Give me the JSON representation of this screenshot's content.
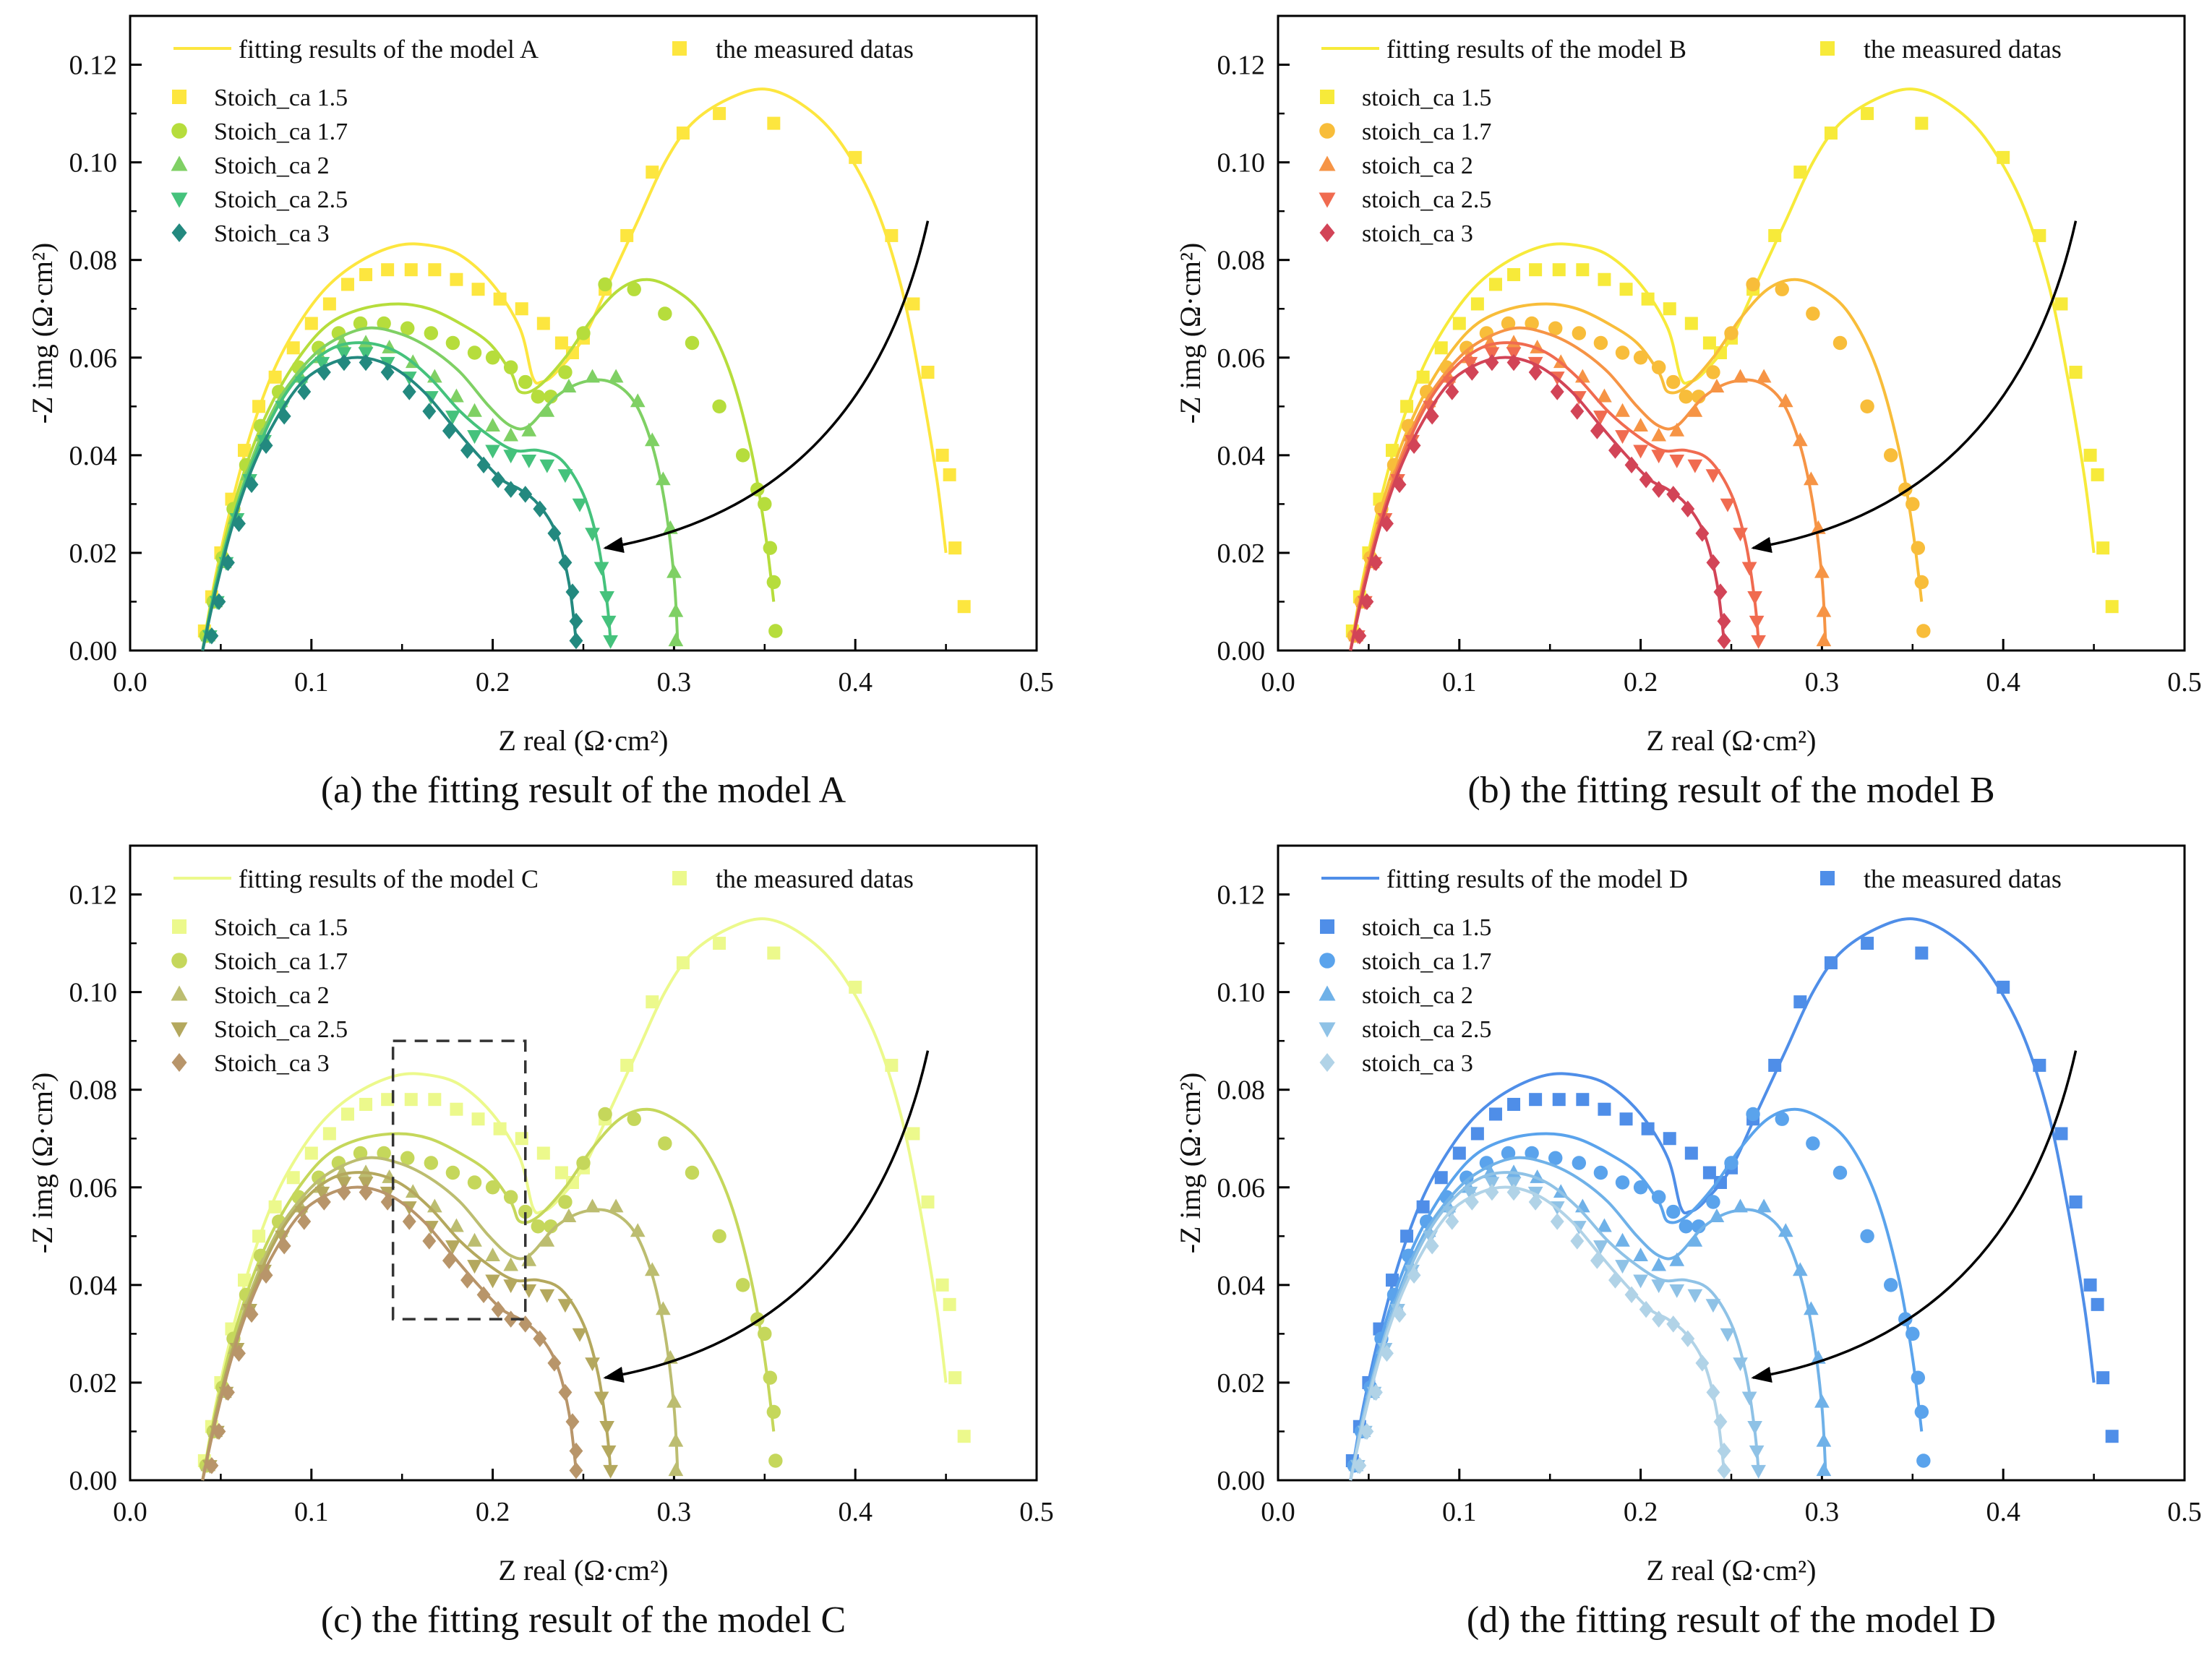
{
  "figure": {
    "panels": [
      {
        "id": "a",
        "caption": "(a) the fitting result of the model A",
        "fit_legend": "fitting results of the model A",
        "meas_legend": "the measured datas",
        "series_labels": [
          "Stoich_ca 1.5",
          "Stoich_ca 1.7",
          "Stoich_ca 2",
          "Stoich_ca 2.5",
          "Stoich_ca 3"
        ],
        "colors": [
          "#fde63f",
          "#b6dd3c",
          "#7fd064",
          "#45c27c",
          "#23897f"
        ],
        "rect": false
      },
      {
        "id": "b",
        "caption": "(b) the fitting result of the model B",
        "fit_legend": "fitting results of the model B",
        "meas_legend": "the measured datas",
        "series_labels": [
          "stoich_ca 1.5",
          "stoich_ca 1.7",
          "stoich_ca 2",
          "stoich_ca 2.5",
          "stoich_ca 3"
        ],
        "colors": [
          "#f7ea3a",
          "#f8bd3a",
          "#f69445",
          "#f06b50",
          "#d24457"
        ],
        "rect": false
      },
      {
        "id": "c",
        "caption": "(c) the fitting result of the model C",
        "fit_legend": "fitting results of the model C",
        "meas_legend": "the measured datas",
        "series_labels": [
          "Stoich_ca 1.5",
          "Stoich_ca 1.7",
          "Stoich_ca 2",
          "Stoich_ca 2.5",
          "Stoich_ca 3"
        ],
        "colors": [
          "#ecf98c",
          "#c5d75b",
          "#bcbd70",
          "#b4a85e",
          "#b8956a"
        ],
        "rect": true
      },
      {
        "id": "d",
        "caption": "(d) the fitting result of the model D",
        "fit_legend": "fitting results of the model D",
        "meas_legend": "the measured datas",
        "series_labels": [
          "stoich_ca 1.5",
          "stoich_ca 1.7",
          "stoich_ca 2",
          "stoich_ca 2.5",
          "stoich_ca 3"
        ],
        "colors": [
          "#4f8ee8",
          "#5aa3ec",
          "#6fb1e8",
          "#8fc2e6",
          "#b1d3e7"
        ],
        "rect": false
      }
    ],
    "markers": [
      "square",
      "circle",
      "triangle-up",
      "triangle-down",
      "diamond"
    ]
  },
  "chart_data": {
    "type": "scatter",
    "xlabel": "Z real (Ω·cm²)",
    "ylabel": "-Z img (Ω·cm²)",
    "xlim": [
      0.0,
      0.5
    ],
    "ylim": [
      0.0,
      0.13
    ],
    "xticks": [
      "0.0",
      "0.1",
      "0.2",
      "0.3",
      "0.4",
      "0.5"
    ],
    "yticks": [
      "0.00",
      "0.02",
      "0.04",
      "0.06",
      "0.08",
      "0.10",
      "0.12"
    ],
    "series": [
      {
        "name": "1.5",
        "measured": [
          [
            0.041,
            0.004
          ],
          [
            0.045,
            0.011
          ],
          [
            0.05,
            0.02
          ],
          [
            0.056,
            0.031
          ],
          [
            0.063,
            0.041
          ],
          [
            0.071,
            0.05
          ],
          [
            0.08,
            0.056
          ],
          [
            0.09,
            0.062
          ],
          [
            0.1,
            0.067
          ],
          [
            0.11,
            0.071
          ],
          [
            0.12,
            0.075
          ],
          [
            0.13,
            0.077
          ],
          [
            0.142,
            0.078
          ],
          [
            0.155,
            0.078
          ],
          [
            0.168,
            0.078
          ],
          [
            0.18,
            0.076
          ],
          [
            0.192,
            0.074
          ],
          [
            0.204,
            0.072
          ],
          [
            0.216,
            0.07
          ],
          [
            0.228,
            0.067
          ],
          [
            0.238,
            0.063
          ],
          [
            0.244,
            0.061
          ],
          [
            0.25,
            0.064
          ],
          [
            0.262,
            0.074
          ],
          [
            0.274,
            0.085
          ],
          [
            0.288,
            0.098
          ],
          [
            0.305,
            0.106
          ],
          [
            0.325,
            0.11
          ],
          [
            0.355,
            0.108
          ],
          [
            0.4,
            0.101
          ],
          [
            0.42,
            0.085
          ],
          [
            0.432,
            0.071
          ],
          [
            0.44,
            0.057
          ],
          [
            0.448,
            0.04
          ],
          [
            0.452,
            0.036
          ],
          [
            0.455,
            0.021
          ],
          [
            0.46,
            0.009
          ]
        ],
        "fit": [
          [
            0.04,
            0.0
          ],
          [
            0.047,
            0.015
          ],
          [
            0.056,
            0.03
          ],
          [
            0.067,
            0.045
          ],
          [
            0.08,
            0.058
          ],
          [
            0.095,
            0.068
          ],
          [
            0.11,
            0.075
          ],
          [
            0.128,
            0.08
          ],
          [
            0.148,
            0.083
          ],
          [
            0.165,
            0.083
          ],
          [
            0.182,
            0.081
          ],
          [
            0.2,
            0.075
          ],
          [
            0.215,
            0.066
          ],
          [
            0.222,
            0.056
          ],
          [
            0.227,
            0.055
          ],
          [
            0.235,
            0.057
          ],
          [
            0.25,
            0.064
          ],
          [
            0.265,
            0.076
          ],
          [
            0.28,
            0.088
          ],
          [
            0.295,
            0.1
          ],
          [
            0.31,
            0.108
          ],
          [
            0.33,
            0.113
          ],
          [
            0.35,
            0.115
          ],
          [
            0.37,
            0.112
          ],
          [
            0.39,
            0.105
          ],
          [
            0.41,
            0.092
          ],
          [
            0.425,
            0.075
          ],
          [
            0.436,
            0.055
          ],
          [
            0.445,
            0.035
          ],
          [
            0.45,
            0.02
          ]
        ]
      },
      {
        "name": "1.7",
        "measured": [
          [
            0.042,
            0.003
          ],
          [
            0.046,
            0.01
          ],
          [
            0.051,
            0.019
          ],
          [
            0.057,
            0.029
          ],
          [
            0.064,
            0.038
          ],
          [
            0.072,
            0.046
          ],
          [
            0.082,
            0.053
          ],
          [
            0.093,
            0.058
          ],
          [
            0.104,
            0.062
          ],
          [
            0.115,
            0.065
          ],
          [
            0.127,
            0.067
          ],
          [
            0.14,
            0.067
          ],
          [
            0.153,
            0.066
          ],
          [
            0.166,
            0.065
          ],
          [
            0.178,
            0.063
          ],
          [
            0.19,
            0.061
          ],
          [
            0.2,
            0.06
          ],
          [
            0.21,
            0.058
          ],
          [
            0.218,
            0.055
          ],
          [
            0.225,
            0.052
          ],
          [
            0.232,
            0.052
          ],
          [
            0.24,
            0.057
          ],
          [
            0.25,
            0.065
          ],
          [
            0.262,
            0.075
          ],
          [
            0.278,
            0.074
          ],
          [
            0.295,
            0.069
          ],
          [
            0.31,
            0.063
          ],
          [
            0.325,
            0.05
          ],
          [
            0.338,
            0.04
          ],
          [
            0.346,
            0.033
          ],
          [
            0.35,
            0.03
          ],
          [
            0.353,
            0.021
          ],
          [
            0.355,
            0.014
          ],
          [
            0.356,
            0.004
          ]
        ],
        "fit": [
          [
            0.04,
            0.0
          ],
          [
            0.047,
            0.014
          ],
          [
            0.056,
            0.028
          ],
          [
            0.067,
            0.041
          ],
          [
            0.08,
            0.052
          ],
          [
            0.095,
            0.061
          ],
          [
            0.11,
            0.067
          ],
          [
            0.128,
            0.07
          ],
          [
            0.148,
            0.071
          ],
          [
            0.165,
            0.07
          ],
          [
            0.182,
            0.067
          ],
          [
            0.198,
            0.063
          ],
          [
            0.21,
            0.057
          ],
          [
            0.215,
            0.053
          ],
          [
            0.225,
            0.054
          ],
          [
            0.24,
            0.06
          ],
          [
            0.255,
            0.068
          ],
          [
            0.27,
            0.074
          ],
          [
            0.285,
            0.076
          ],
          [
            0.3,
            0.074
          ],
          [
            0.315,
            0.069
          ],
          [
            0.33,
            0.058
          ],
          [
            0.342,
            0.042
          ],
          [
            0.35,
            0.025
          ],
          [
            0.355,
            0.01
          ]
        ]
      },
      {
        "name": "2",
        "measured": [
          [
            0.043,
            0.003
          ],
          [
            0.047,
            0.01
          ],
          [
            0.052,
            0.018
          ],
          [
            0.058,
            0.027
          ],
          [
            0.065,
            0.036
          ],
          [
            0.073,
            0.044
          ],
          [
            0.083,
            0.051
          ],
          [
            0.094,
            0.056
          ],
          [
            0.105,
            0.06
          ],
          [
            0.117,
            0.063
          ],
          [
            0.13,
            0.063
          ],
          [
            0.143,
            0.062
          ],
          [
            0.156,
            0.059
          ],
          [
            0.168,
            0.056
          ],
          [
            0.18,
            0.052
          ],
          [
            0.19,
            0.049
          ],
          [
            0.2,
            0.046
          ],
          [
            0.21,
            0.044
          ],
          [
            0.22,
            0.045
          ],
          [
            0.23,
            0.049
          ],
          [
            0.242,
            0.054
          ],
          [
            0.255,
            0.056
          ],
          [
            0.268,
            0.056
          ],
          [
            0.28,
            0.051
          ],
          [
            0.288,
            0.043
          ],
          [
            0.294,
            0.035
          ],
          [
            0.298,
            0.025
          ],
          [
            0.3,
            0.016
          ],
          [
            0.301,
            0.008
          ],
          [
            0.301,
            0.002
          ]
        ],
        "fit": [
          [
            0.04,
            0.0
          ],
          [
            0.047,
            0.013
          ],
          [
            0.056,
            0.026
          ],
          [
            0.067,
            0.039
          ],
          [
            0.08,
            0.05
          ],
          [
            0.095,
            0.058
          ],
          [
            0.11,
            0.063
          ],
          [
            0.13,
            0.066
          ],
          [
            0.148,
            0.065
          ],
          [
            0.165,
            0.062
          ],
          [
            0.182,
            0.057
          ],
          [
            0.198,
            0.05
          ],
          [
            0.21,
            0.046
          ],
          [
            0.22,
            0.046
          ],
          [
            0.235,
            0.052
          ],
          [
            0.25,
            0.055
          ],
          [
            0.265,
            0.055
          ],
          [
            0.278,
            0.051
          ],
          [
            0.288,
            0.042
          ],
          [
            0.295,
            0.03
          ],
          [
            0.3,
            0.015
          ],
          [
            0.302,
            0.002
          ]
        ]
      },
      {
        "name": "2.5",
        "measured": [
          [
            0.044,
            0.003
          ],
          [
            0.048,
            0.01
          ],
          [
            0.053,
            0.018
          ],
          [
            0.059,
            0.027
          ],
          [
            0.066,
            0.035
          ],
          [
            0.074,
            0.043
          ],
          [
            0.084,
            0.05
          ],
          [
            0.095,
            0.055
          ],
          [
            0.106,
            0.059
          ],
          [
            0.118,
            0.061
          ],
          [
            0.13,
            0.061
          ],
          [
            0.142,
            0.059
          ],
          [
            0.154,
            0.056
          ],
          [
            0.166,
            0.052
          ],
          [
            0.178,
            0.048
          ],
          [
            0.19,
            0.044
          ],
          [
            0.2,
            0.041
          ],
          [
            0.21,
            0.04
          ],
          [
            0.22,
            0.039
          ],
          [
            0.23,
            0.038
          ],
          [
            0.24,
            0.036
          ],
          [
            0.248,
            0.03
          ],
          [
            0.255,
            0.024
          ],
          [
            0.26,
            0.017
          ],
          [
            0.263,
            0.011
          ],
          [
            0.264,
            0.006
          ],
          [
            0.265,
            0.002
          ]
        ],
        "fit": [
          [
            0.04,
            0.0
          ],
          [
            0.047,
            0.013
          ],
          [
            0.056,
            0.026
          ],
          [
            0.067,
            0.038
          ],
          [
            0.08,
            0.049
          ],
          [
            0.095,
            0.057
          ],
          [
            0.112,
            0.062
          ],
          [
            0.13,
            0.063
          ],
          [
            0.148,
            0.061
          ],
          [
            0.165,
            0.056
          ],
          [
            0.182,
            0.049
          ],
          [
            0.198,
            0.044
          ],
          [
            0.212,
            0.041
          ],
          [
            0.225,
            0.041
          ],
          [
            0.238,
            0.039
          ],
          [
            0.25,
            0.032
          ],
          [
            0.258,
            0.022
          ],
          [
            0.263,
            0.01
          ],
          [
            0.265,
            0.002
          ]
        ]
      },
      {
        "name": "3",
        "measured": [
          [
            0.045,
            0.003
          ],
          [
            0.049,
            0.01
          ],
          [
            0.054,
            0.018
          ],
          [
            0.06,
            0.026
          ],
          [
            0.067,
            0.034
          ],
          [
            0.075,
            0.042
          ],
          [
            0.085,
            0.048
          ],
          [
            0.096,
            0.053
          ],
          [
            0.107,
            0.057
          ],
          [
            0.118,
            0.059
          ],
          [
            0.13,
            0.059
          ],
          [
            0.142,
            0.057
          ],
          [
            0.154,
            0.053
          ],
          [
            0.165,
            0.049
          ],
          [
            0.176,
            0.045
          ],
          [
            0.186,
            0.041
          ],
          [
            0.195,
            0.038
          ],
          [
            0.203,
            0.035
          ],
          [
            0.21,
            0.033
          ],
          [
            0.218,
            0.032
          ],
          [
            0.226,
            0.029
          ],
          [
            0.234,
            0.024
          ],
          [
            0.24,
            0.018
          ],
          [
            0.244,
            0.012
          ],
          [
            0.246,
            0.006
          ],
          [
            0.246,
            0.002
          ]
        ],
        "fit": [
          [
            0.04,
            0.0
          ],
          [
            0.047,
            0.012
          ],
          [
            0.056,
            0.025
          ],
          [
            0.067,
            0.037
          ],
          [
            0.08,
            0.047
          ],
          [
            0.095,
            0.055
          ],
          [
            0.112,
            0.059
          ],
          [
            0.128,
            0.06
          ],
          [
            0.145,
            0.058
          ],
          [
            0.162,
            0.053
          ],
          [
            0.178,
            0.046
          ],
          [
            0.192,
            0.04
          ],
          [
            0.205,
            0.035
          ],
          [
            0.215,
            0.033
          ],
          [
            0.225,
            0.03
          ],
          [
            0.235,
            0.024
          ],
          [
            0.242,
            0.014
          ],
          [
            0.246,
            0.002
          ]
        ]
      }
    ]
  }
}
